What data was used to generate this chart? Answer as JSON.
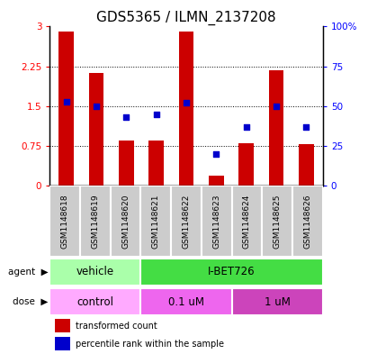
{
  "title": "GDS5365 / ILMN_2137208",
  "samples": [
    "GSM1148618",
    "GSM1148619",
    "GSM1148620",
    "GSM1148621",
    "GSM1148622",
    "GSM1148623",
    "GSM1148624",
    "GSM1148625",
    "GSM1148626"
  ],
  "red_values": [
    2.9,
    2.12,
    0.85,
    0.85,
    2.9,
    0.2,
    0.8,
    2.18,
    0.78
  ],
  "blue_values": [
    53,
    50,
    43,
    45,
    52,
    20,
    37,
    50,
    37
  ],
  "left_ylim": [
    0,
    3
  ],
  "right_ylim": [
    0,
    100
  ],
  "left_yticks": [
    0,
    0.75,
    1.5,
    2.25,
    3
  ],
  "right_yticks": [
    0,
    25,
    50,
    75,
    100
  ],
  "right_yticklabels": [
    "0",
    "25",
    "50",
    "75",
    "100%"
  ],
  "bar_color": "#cc0000",
  "dot_color": "#0000cc",
  "plot_bg": "#ffffff",
  "agent_vehicle_color": "#aaffaa",
  "agent_ibet_color": "#44dd44",
  "dose_control_color": "#ffaaff",
  "dose_01_color": "#ee66ee",
  "dose_1_color": "#cc44bb",
  "sample_cell_color": "#cccccc",
  "legend_red": "transformed count",
  "legend_blue": "percentile rank within the sample",
  "title_fontsize": 11,
  "tick_fontsize": 7.5,
  "label_fontsize": 8.5
}
